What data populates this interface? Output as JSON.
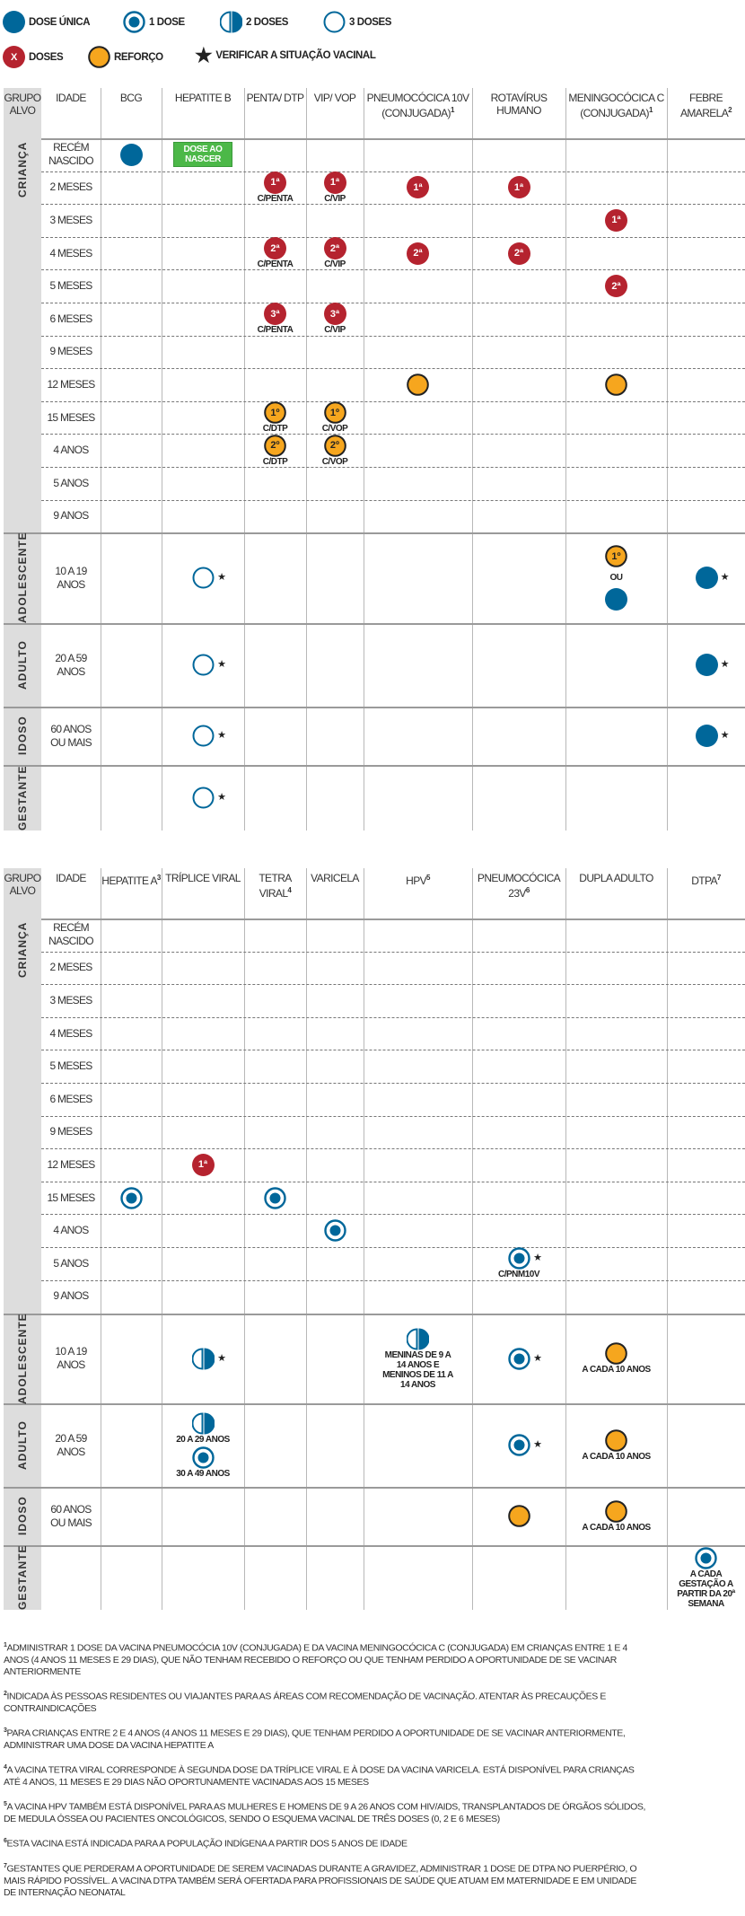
{
  "colors": {
    "blue": "#00679a",
    "red": "#b5232f",
    "orange": "#f6a61e",
    "green": "#4cb848",
    "gray": "#dddddd"
  },
  "legend": [
    {
      "type": "dose_unica",
      "label": "DOSE ÚNICA"
    },
    {
      "type": "uma_dose",
      "label": "1 DOSE"
    },
    {
      "type": "duas_doses",
      "label": "2 DOSES"
    },
    {
      "type": "tres_doses",
      "label": "3 DOSES"
    },
    {
      "type": "doses",
      "symbol_text": "X",
      "label": "DOSES"
    },
    {
      "type": "reforco",
      "label": "REFORÇO"
    },
    {
      "type": "star",
      "label": "VERIFICAR A SITUAÇÃO VACINAL"
    }
  ],
  "common": {
    "group_header": "GRUPO ALVO",
    "age_header": "IDADE",
    "groups": [
      "CRIANÇA",
      "ADOLESCENTE",
      "ADULTO",
      "IDOSO",
      "GESTANTE"
    ],
    "ages": [
      "RECÉM NASCIDO",
      "2 MESES",
      "3 MESES",
      "4 MESES",
      "5 MESES",
      "6 MESES",
      "9 MESES",
      "12 MESES",
      "15 MESES",
      "4 ANOS",
      "5 ANOS",
      "9 ANOS",
      "10 A 19 ANOS",
      "20 A 59 ANOS",
      "60 ANOS OU MAIS",
      ""
    ]
  },
  "tables": [
    {
      "columns": [
        {
          "label": "BCG",
          "sup": ""
        },
        {
          "label": "HEPATITE B",
          "sup": ""
        },
        {
          "label": "PENTA/ DTP",
          "sup": ""
        },
        {
          "label": "VIP/ VOP",
          "sup": ""
        },
        {
          "label": "PNEUMOCÓCICA 10V (CONJUGADA)",
          "sup": "1"
        },
        {
          "label": "ROTAVÍRUS HUMANO",
          "sup": ""
        },
        {
          "label": "MENINGOCÓCICA C (CONJUGADA)",
          "sup": "1"
        },
        {
          "label": "FEBRE AMARELA",
          "sup": "2"
        }
      ],
      "marks": [
        {
          "row": 0,
          "col": 0,
          "items": [
            {
              "type": "dose_unica"
            }
          ]
        },
        {
          "row": 0,
          "col": 1,
          "items": [
            {
              "type": "green_box",
              "text": "DOSE AO NASCER"
            }
          ]
        },
        {
          "row": 1,
          "col": 2,
          "items": [
            {
              "type": "doses",
              "text": "1ª",
              "note": "C/PENTA"
            }
          ]
        },
        {
          "row": 1,
          "col": 3,
          "items": [
            {
              "type": "doses",
              "text": "1ª",
              "note": "C/VIP"
            }
          ]
        },
        {
          "row": 1,
          "col": 4,
          "items": [
            {
              "type": "doses",
              "text": "1ª"
            }
          ]
        },
        {
          "row": 1,
          "col": 5,
          "items": [
            {
              "type": "doses",
              "text": "1ª"
            }
          ]
        },
        {
          "row": 2,
          "col": 6,
          "items": [
            {
              "type": "doses",
              "text": "1ª"
            }
          ]
        },
        {
          "row": 3,
          "col": 2,
          "items": [
            {
              "type": "doses",
              "text": "2ª",
              "note": "C/PENTA"
            }
          ]
        },
        {
          "row": 3,
          "col": 3,
          "items": [
            {
              "type": "doses",
              "text": "2ª",
              "note": "C/VIP"
            }
          ]
        },
        {
          "row": 3,
          "col": 4,
          "items": [
            {
              "type": "doses",
              "text": "2ª"
            }
          ]
        },
        {
          "row": 3,
          "col": 5,
          "items": [
            {
              "type": "doses",
              "text": "2ª"
            }
          ]
        },
        {
          "row": 4,
          "col": 6,
          "items": [
            {
              "type": "doses",
              "text": "2ª"
            }
          ]
        },
        {
          "row": 5,
          "col": 2,
          "items": [
            {
              "type": "doses",
              "text": "3ª",
              "note": "C/PENTA"
            }
          ]
        },
        {
          "row": 5,
          "col": 3,
          "items": [
            {
              "type": "doses",
              "text": "3ª",
              "note": "C/VIP"
            }
          ]
        },
        {
          "row": 7,
          "col": 4,
          "items": [
            {
              "type": "reforco"
            }
          ]
        },
        {
          "row": 7,
          "col": 6,
          "items": [
            {
              "type": "reforco"
            }
          ]
        },
        {
          "row": 8,
          "col": 2,
          "items": [
            {
              "type": "reforco",
              "text": "1º",
              "note": "C/DTP"
            }
          ]
        },
        {
          "row": 8,
          "col": 3,
          "items": [
            {
              "type": "reforco",
              "text": "1º",
              "note": "C/VOP"
            }
          ]
        },
        {
          "row": 9,
          "col": 2,
          "items": [
            {
              "type": "reforco",
              "text": "2º",
              "note": "C/DTP"
            }
          ]
        },
        {
          "row": 9,
          "col": 3,
          "items": [
            {
              "type": "reforco",
              "text": "2º",
              "note": "C/VOP"
            }
          ]
        },
        {
          "row": 12,
          "col": 1,
          "items": [
            {
              "type": "tres_doses",
              "star": true
            }
          ]
        },
        {
          "row": 12,
          "col": 6,
          "items": [
            {
              "type": "reforco",
              "text": "1º"
            },
            {
              "type": "text",
              "text": "OU"
            },
            {
              "type": "dose_unica"
            }
          ]
        },
        {
          "row": 12,
          "col": 7,
          "items": [
            {
              "type": "dose_unica",
              "star": true
            }
          ]
        },
        {
          "row": 13,
          "col": 1,
          "items": [
            {
              "type": "tres_doses",
              "star": true
            }
          ]
        },
        {
          "row": 13,
          "col": 7,
          "items": [
            {
              "type": "dose_unica",
              "star": true
            }
          ]
        },
        {
          "row": 14,
          "col": 1,
          "items": [
            {
              "type": "tres_doses",
              "star": true
            }
          ]
        },
        {
          "row": 14,
          "col": 7,
          "items": [
            {
              "type": "dose_unica",
              "star": true
            }
          ]
        },
        {
          "row": 15,
          "col": 1,
          "items": [
            {
              "type": "tres_doses",
              "star": true
            }
          ]
        }
      ]
    },
    {
      "columns": [
        {
          "label": "HEPATITE A",
          "sup": "3"
        },
        {
          "label": "TRÍPLICE VIRAL",
          "sup": ""
        },
        {
          "label": "TETRA VIRAL",
          "sup": "4"
        },
        {
          "label": "VARICELA",
          "sup": ""
        },
        {
          "label": "HPV",
          "sup": "5"
        },
        {
          "label": "PNEUMOCÓCICA 23V",
          "sup": "6"
        },
        {
          "label": "DUPLA ADULTO",
          "sup": ""
        },
        {
          "label": "DTPA",
          "sup": "7"
        }
      ],
      "marks": [
        {
          "row": 7,
          "col": 1,
          "items": [
            {
              "type": "doses",
              "text": "1ª"
            }
          ]
        },
        {
          "row": 8,
          "col": 0,
          "items": [
            {
              "type": "uma_dose"
            }
          ]
        },
        {
          "row": 8,
          "col": 2,
          "items": [
            {
              "type": "uma_dose"
            }
          ]
        },
        {
          "row": 9,
          "col": 3,
          "items": [
            {
              "type": "uma_dose"
            }
          ]
        },
        {
          "row": 10,
          "col": 5,
          "items": [
            {
              "type": "uma_dose",
              "star": true,
              "note": "C/PNM10V"
            }
          ]
        },
        {
          "row": 12,
          "col": 1,
          "items": [
            {
              "type": "duas_doses",
              "star": true
            }
          ]
        },
        {
          "row": 12,
          "col": 4,
          "items": [
            {
              "type": "duas_doses",
              "note": "MENINAS DE 9 A 14 ANOS E MENINOS DE 11 A 14 ANOS"
            }
          ]
        },
        {
          "row": 12,
          "col": 5,
          "items": [
            {
              "type": "uma_dose",
              "star": true
            }
          ]
        },
        {
          "row": 12,
          "col": 6,
          "items": [
            {
              "type": "reforco",
              "note": "A CADA 10 ANOS"
            }
          ]
        },
        {
          "row": 13,
          "col": 1,
          "items": [
            {
              "type": "duas_doses",
              "note": "20 A 29 ANOS"
            },
            {
              "type": "uma_dose",
              "note": "30 A 49 ANOS"
            }
          ]
        },
        {
          "row": 13,
          "col": 5,
          "items": [
            {
              "type": "uma_dose",
              "star": true
            }
          ]
        },
        {
          "row": 13,
          "col": 6,
          "items": [
            {
              "type": "reforco",
              "note": "A CADA 10 ANOS"
            }
          ]
        },
        {
          "row": 14,
          "col": 5,
          "items": [
            {
              "type": "reforco"
            }
          ]
        },
        {
          "row": 14,
          "col": 6,
          "items": [
            {
              "type": "reforco",
              "note": "A CADA 10 ANOS"
            }
          ]
        },
        {
          "row": 15,
          "col": 7,
          "items": [
            {
              "type": "uma_dose",
              "note": "A CADA GESTAÇÃO A PARTIR DA 20ª SEMANA"
            }
          ]
        }
      ]
    }
  ],
  "footnotes": [
    {
      "n": "1",
      "text": "ADMINISTRAR 1 DOSE DA VACINA PNEUMOCÓCIA 10V (CONJUGADA) E DA VACINA MENINGOCÓCICA C (CONJUGADA) EM CRIANÇAS ENTRE 1 E 4 ANOS (4 ANOS 11 MESES E 29 DIAS), QUE NÃO TENHAM RECEBIDO O REFORÇO OU QUE TENHAM PERDIDO A OPORTUNIDADE DE SE VACINAR ANTERIORMENTE"
    },
    {
      "n": "2",
      "text": "INDICADA ÀS PESSOAS RESIDENTES OU VIAJANTES PARA AS ÁREAS COM RECOMENDAÇÃO DE VACINAÇÃO. ATENTAR ÀS PRECAUÇÕES E CONTRAINDICAÇÕES"
    },
    {
      "n": "3",
      "text": "PARA CRIANÇAS ENTRE 2 E 4 ANOS (4 ANOS 11 MESES E 29 DIAS), QUE TENHAM PERDIDO A OPORTUNIDADE DE SE VACINAR ANTERIORMENTE, ADMINISTRAR UMA DOSE DA VACINA HEPATITE A"
    },
    {
      "n": "4",
      "text": "A VACINA TETRA VIRAL CORRESPONDE À SEGUNDA DOSE DA TRÍPLICE VIRAL E À DOSE DA VACINA VARICELA. ESTÁ DISPONÍVEL PARA CRIANÇAS ATÉ 4 ANOS, 11 MESES E 29 DIAS NÃO OPORTUNAMENTE VACINADAS AOS 15 MESES"
    },
    {
      "n": "5",
      "text": "A VACINA HPV TAMBÉM ESTÁ DISPONÍVEL PARA AS MULHERES E HOMENS DE 9 A 26 ANOS COM HIV/AIDS, TRANSPLANTADOS DE ÓRGÃOS SÓLIDOS, DE MEDULA ÓSSEA OU PACIENTES ONCOLÓGICOS, SENDO O ESQUEMA VACINAL DE TRÊS DOSES (0, 2 E 6 MESES)"
    },
    {
      "n": "6",
      "text": "ESTA VACINA ESTÁ INDICADA PARA A POPULAÇÃO INDÍGENA A PARTIR DOS 5 ANOS DE IDADE"
    },
    {
      "n": "7",
      "text": "GESTANTES QUE PERDERAM A OPORTUNIDADE DE SEREM VACINADAS DURANTE A GRAVIDEZ, ADMINISTRAR 1 DOSE DE DTPA NO PUERPÉRIO, O MAIS RÁPIDO POSSÍVEL. A VACINA DTPA TAMBÉM SERÁ OFERTADA PARA PROFISSIONAIS DE SAÚDE QUE ATUAM EM MATERNIDADE E EM UNIDADE DE INTERNAÇÃO NEONATAL"
    }
  ]
}
